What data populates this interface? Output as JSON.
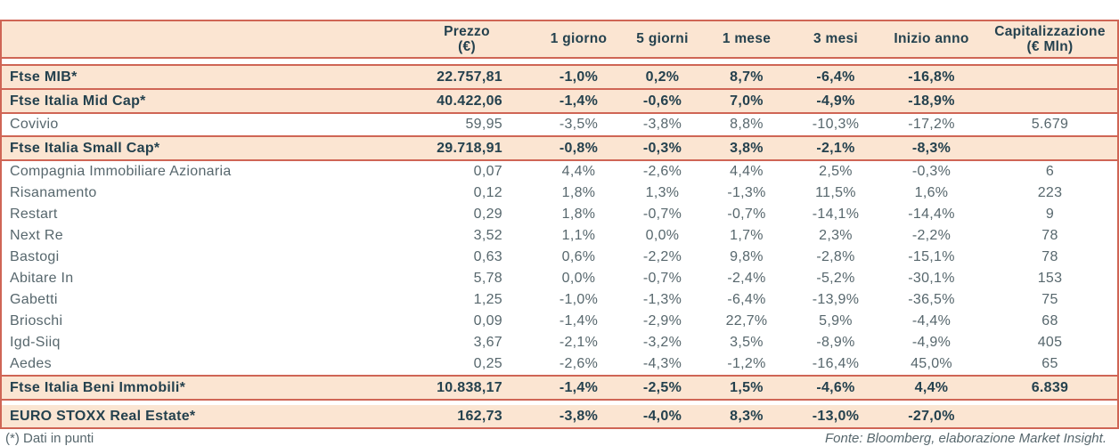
{
  "table": {
    "header": {
      "cols": [
        {
          "l1": "",
          "l2": ""
        },
        {
          "l1": "Prezzo",
          "l2": "(€)"
        },
        {
          "l1": "1 giorno",
          "l2": ""
        },
        {
          "l1": "5 giorni",
          "l2": ""
        },
        {
          "l1": "1 mese",
          "l2": ""
        },
        {
          "l1": "3 mesi",
          "l2": ""
        },
        {
          "l1": "Inizio anno",
          "l2": ""
        },
        {
          "l1": "Capitalizzazione",
          "l2": "(€ Mln)"
        }
      ]
    },
    "rows": [
      {
        "name": "Ftse MIB*",
        "kind": "index",
        "prezzo": "22.757,81",
        "d1": "-1,0%",
        "d5": "0,2%",
        "m1": "8,7%",
        "m3": "-6,4%",
        "ytd": "-16,8%",
        "cap": ""
      },
      {
        "name": "Ftse Italia Mid Cap*",
        "kind": "index",
        "prezzo": "40.422,06",
        "d1": "-1,4%",
        "d5": "-0,6%",
        "m1": "7,0%",
        "m3": "-4,9%",
        "ytd": "-18,9%",
        "cap": ""
      },
      {
        "name": "Covivio",
        "kind": "stock",
        "prezzo": "59,95",
        "d1": "-3,5%",
        "d5": "-3,8%",
        "m1": "8,8%",
        "m3": "-10,3%",
        "ytd": "-17,2%",
        "cap": "5.679"
      },
      {
        "name": "Ftse Italia Small Cap*",
        "kind": "index",
        "prezzo": "29.718,91",
        "d1": "-0,8%",
        "d5": "-0,3%",
        "m1": "3,8%",
        "m3": "-2,1%",
        "ytd": "-8,3%",
        "cap": ""
      },
      {
        "name": "Compagnia Immobiliare Azionaria",
        "kind": "stock",
        "prezzo": "0,07",
        "d1": "4,4%",
        "d5": "-2,6%",
        "m1": "4,4%",
        "m3": "2,5%",
        "ytd": "-0,3%",
        "cap": "6"
      },
      {
        "name": "Risanamento",
        "kind": "stock",
        "prezzo": "0,12",
        "d1": "1,8%",
        "d5": "1,3%",
        "m1": "-1,3%",
        "m3": "11,5%",
        "ytd": "1,6%",
        "cap": "223"
      },
      {
        "name": "Restart",
        "kind": "stock",
        "prezzo": "0,29",
        "d1": "1,8%",
        "d5": "-0,7%",
        "m1": "-0,7%",
        "m3": "-14,1%",
        "ytd": "-14,4%",
        "cap": "9"
      },
      {
        "name": "Next Re",
        "kind": "stock",
        "prezzo": "3,52",
        "d1": "1,1%",
        "d5": "0,0%",
        "m1": "1,7%",
        "m3": "2,3%",
        "ytd": "-2,2%",
        "cap": "78"
      },
      {
        "name": "Bastogi",
        "kind": "stock",
        "prezzo": "0,63",
        "d1": "0,6%",
        "d5": "-2,2%",
        "m1": "9,8%",
        "m3": "-2,8%",
        "ytd": "-15,1%",
        "cap": "78"
      },
      {
        "name": "Abitare In",
        "kind": "stock",
        "prezzo": "5,78",
        "d1": "0,0%",
        "d5": "-0,7%",
        "m1": "-2,4%",
        "m3": "-5,2%",
        "ytd": "-30,1%",
        "cap": "153"
      },
      {
        "name": "Gabetti",
        "kind": "stock",
        "prezzo": "1,25",
        "d1": "-1,0%",
        "d5": "-1,3%",
        "m1": "-6,4%",
        "m3": "-13,9%",
        "ytd": "-36,5%",
        "cap": "75"
      },
      {
        "name": "Brioschi",
        "kind": "stock",
        "prezzo": "0,09",
        "d1": "-1,4%",
        "d5": "-2,9%",
        "m1": "22,7%",
        "m3": "5,9%",
        "ytd": "-4,4%",
        "cap": "68"
      },
      {
        "name": "Igd-Siiq",
        "kind": "stock",
        "prezzo": "3,67",
        "d1": "-2,1%",
        "d5": "-3,2%",
        "m1": "3,5%",
        "m3": "-8,9%",
        "ytd": "-4,9%",
        "cap": "405"
      },
      {
        "name": "Aedes",
        "kind": "stock",
        "prezzo": "0,25",
        "d1": "-2,6%",
        "d5": "-4,3%",
        "m1": "-1,2%",
        "m3": "-16,4%",
        "ytd": "45,0%",
        "cap": "65"
      },
      {
        "name": "Ftse Italia Beni Immobili*",
        "kind": "index",
        "prezzo": "10.838,17",
        "d1": "-1,4%",
        "d5": "-2,5%",
        "m1": "1,5%",
        "m3": "-4,6%",
        "ytd": "4,4%",
        "cap": "6.839"
      },
      {
        "name": "EURO STOXX Real Estate*",
        "kind": "index",
        "prezzo": "162,73",
        "d1": "-3,8%",
        "d5": "-4,0%",
        "m1": "8,3%",
        "m3": "-13,0%",
        "ytd": "-27,0%",
        "cap": ""
      }
    ]
  },
  "footer": {
    "note": "(*) Dati in punti",
    "source": "Fonte: Bloomberg, elaborazione Market Insight."
  },
  "colors": {
    "accent_red": "#cf6555",
    "row_highlight_peach": "#fbe5d2",
    "text_dark": "#24414e",
    "text_gray": "#57676d"
  }
}
